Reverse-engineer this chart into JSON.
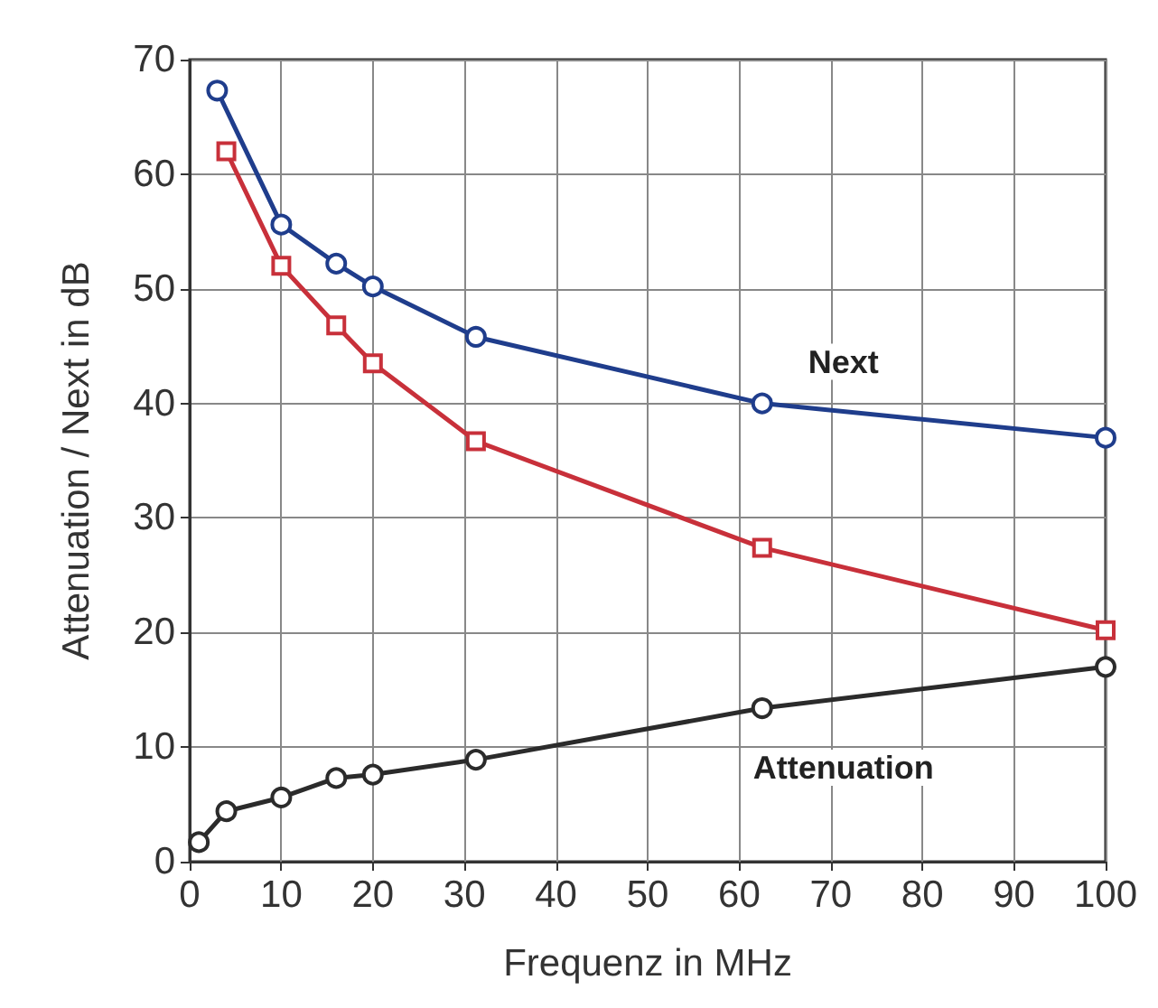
{
  "chart_data": {
    "type": "line",
    "xlabel": "Frequenz in MHz",
    "ylabel": "Attenuation / Next in dB",
    "xlim": [
      0,
      100
    ],
    "xticks": [
      0,
      10,
      20,
      30,
      40,
      50,
      60,
      70,
      80,
      90,
      100
    ],
    "ylim": [
      0,
      70
    ],
    "yticks": [
      0,
      10,
      20,
      30,
      40,
      50,
      60,
      70
    ],
    "grid": true,
    "legend": false,
    "line_style": "solid",
    "series": [
      {
        "name": "Next",
        "color": "#1f3d8c",
        "marker": "circle",
        "x": [
          3,
          10,
          16,
          20,
          31.25,
          62.5,
          100
        ],
        "values": [
          67.3,
          55.6,
          52.2,
          50.2,
          45.8,
          40,
          37
        ]
      },
      {
        "color": "#c8303a",
        "marker": "square",
        "x": [
          4,
          10,
          16,
          20,
          31.25,
          62.5,
          100
        ],
        "values": [
          62,
          52,
          46.8,
          43.5,
          36.7,
          27.4,
          20.2
        ]
      },
      {
        "name": "Attenuation",
        "color": "#2b2b2b",
        "marker": "circle",
        "x": [
          1,
          4,
          10,
          16,
          20,
          31.25,
          62.5,
          100
        ],
        "values": [
          1.7,
          4.4,
          5.6,
          7.3,
          7.6,
          8.9,
          13.4,
          17
        ]
      }
    ]
  }
}
